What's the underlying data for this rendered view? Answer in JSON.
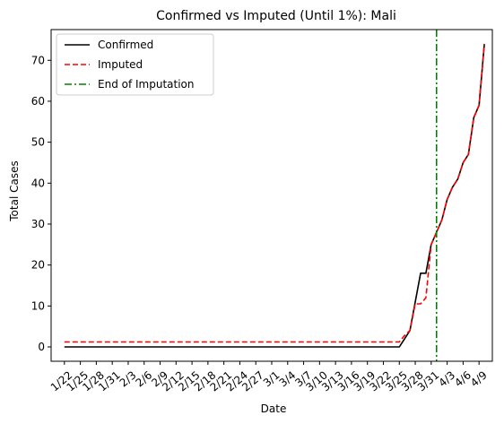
{
  "chart_data": {
    "type": "line",
    "title": "Confirmed vs Imputed (Until 1%): Mali",
    "xlabel": "Date",
    "ylabel": "Total Cases",
    "x_tick_labels": [
      "1/22",
      "1/25",
      "1/28",
      "1/31",
      "2/3",
      "2/6",
      "2/9",
      "2/12",
      "2/15",
      "2/18",
      "2/21",
      "2/24",
      "2/27",
      "3/1",
      "3/4",
      "3/7",
      "3/10",
      "3/13",
      "3/16",
      "3/19",
      "3/22",
      "3/25",
      "3/28",
      "3/31",
      "4/3",
      "4/6",
      "4/9"
    ],
    "x_tick_positions": [
      0,
      3,
      6,
      9,
      12,
      15,
      18,
      21,
      24,
      27,
      30,
      33,
      36,
      39,
      42,
      45,
      48,
      51,
      54,
      57,
      60,
      63,
      66,
      69,
      72,
      75,
      78
    ],
    "y_ticks": [
      0,
      10,
      20,
      30,
      40,
      50,
      60,
      70
    ],
    "xlim": [
      -2.5,
      80.5
    ],
    "ylim": [
      -3.5,
      77.5
    ],
    "grid": false,
    "legend_position": "top-left",
    "series": [
      {
        "name": "Confirmed",
        "color": "#000000",
        "dash": "solid",
        "points": [
          [
            0,
            0
          ],
          [
            63,
            0
          ],
          [
            64,
            2
          ],
          [
            65,
            4
          ],
          [
            67,
            18
          ],
          [
            68,
            18
          ],
          [
            69,
            25
          ],
          [
            70,
            28
          ],
          [
            71,
            31
          ],
          [
            72,
            36
          ],
          [
            73,
            39
          ],
          [
            74,
            41
          ],
          [
            75,
            45
          ],
          [
            76,
            47
          ],
          [
            77,
            56
          ],
          [
            78,
            59
          ],
          [
            79,
            74
          ]
        ]
      },
      {
        "name": "Imputed",
        "color": "#ff0000",
        "dash": "dashed",
        "points": [
          [
            0,
            1.2
          ],
          [
            63,
            1.2
          ],
          [
            64,
            2.8
          ],
          [
            65,
            4
          ],
          [
            66,
            10.5
          ],
          [
            67,
            10.5
          ],
          [
            68,
            12
          ],
          [
            69,
            25
          ],
          [
            70,
            28
          ],
          [
            71,
            31
          ],
          [
            72,
            36
          ],
          [
            73,
            39
          ],
          [
            74,
            41
          ],
          [
            75,
            45
          ],
          [
            76,
            47
          ],
          [
            77,
            56
          ],
          [
            78,
            59
          ],
          [
            79,
            74
          ]
        ]
      }
    ],
    "vline": {
      "name": "End of Imputation",
      "x": 70,
      "color": "#008000",
      "dash": "dashdot"
    }
  }
}
